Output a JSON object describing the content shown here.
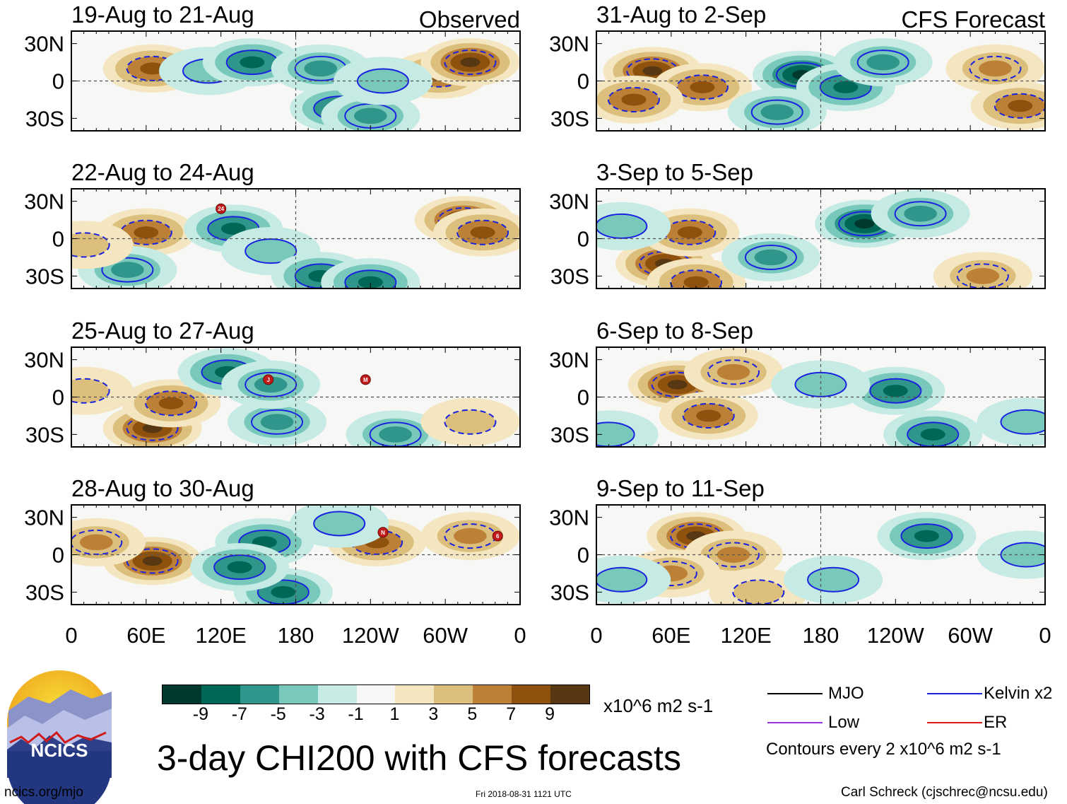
{
  "chart_data": {
    "type": "heatmap",
    "title": "3-day CHI200 with CFS forecasts",
    "units": "x10^6 m2 s-1",
    "contour_note": "Contours every 2 x10^6 m2 s-1",
    "x_ticks": [
      "0",
      "60E",
      "120E",
      "180",
      "120W",
      "60W",
      "0"
    ],
    "y_ticks": [
      "30N",
      "0",
      "30S"
    ],
    "ylim": [
      -40,
      40
    ],
    "xlim": [
      0,
      360
    ],
    "column_labels": [
      "Observed",
      "CFS Forecast"
    ],
    "panels": [
      {
        "label": "19-Aug to 21-Aug",
        "kind": "Observed",
        "blobs": [
          [
            65,
            10,
            7
          ],
          [
            110,
            8,
            -1
          ],
          [
            145,
            15,
            -7
          ],
          [
            200,
            10,
            -5
          ],
          [
            215,
            -22,
            -6
          ],
          [
            240,
            -28,
            -5
          ],
          [
            295,
            5,
            7
          ],
          [
            320,
            15,
            8
          ],
          [
            250,
            0,
            -3
          ]
        ],
        "storms": []
      },
      {
        "label": "22-Aug to 24-Aug",
        "kind": "Observed",
        "blobs": [
          [
            60,
            5,
            7
          ],
          [
            45,
            -25,
            -5
          ],
          [
            130,
            8,
            -6
          ],
          [
            160,
            -10,
            -3
          ],
          [
            200,
            -30,
            -7
          ],
          [
            240,
            -35,
            -6
          ],
          [
            315,
            15,
            9
          ],
          [
            330,
            5,
            7
          ],
          [
            10,
            -5,
            3
          ]
        ],
        "storms": [
          {
            "name": "24",
            "lon": 120,
            "lat": 24
          }
        ]
      },
      {
        "label": "25-Aug to 27-Aug",
        "kind": "Observed",
        "blobs": [
          [
            65,
            -25,
            8
          ],
          [
            80,
            -5,
            6
          ],
          [
            125,
            20,
            -6
          ],
          [
            165,
            -20,
            -5
          ],
          [
            160,
            10,
            -4
          ],
          [
            260,
            -30,
            -4
          ],
          [
            320,
            -20,
            3
          ],
          [
            10,
            5,
            2
          ]
        ],
        "storms": [
          {
            "name": "J",
            "lon": 158,
            "lat": 14
          },
          {
            "name": "M",
            "lon": 236,
            "lat": 14
          }
        ]
      },
      {
        "label": "28-Aug to 30-Aug",
        "kind": "Observed",
        "blobs": [
          [
            65,
            -5,
            9
          ],
          [
            20,
            10,
            4
          ],
          [
            155,
            10,
            -7
          ],
          [
            170,
            -30,
            -7
          ],
          [
            135,
            -10,
            -6
          ],
          [
            245,
            10,
            6
          ],
          [
            320,
            15,
            4
          ],
          [
            215,
            25,
            -3
          ]
        ],
        "storms": [
          {
            "name": "N",
            "lon": 250,
            "lat": 18
          },
          {
            "name": "6",
            "lon": 342,
            "lat": 15
          }
        ]
      },
      {
        "label": "31-Aug to 2-Sep",
        "kind": "CFS Forecast",
        "blobs": [
          [
            45,
            8,
            9
          ],
          [
            85,
            -5,
            7
          ],
          [
            30,
            -15,
            6
          ],
          [
            165,
            5,
            -8
          ],
          [
            200,
            -5,
            -6
          ],
          [
            230,
            15,
            -5
          ],
          [
            320,
            10,
            4
          ],
          [
            340,
            -20,
            6
          ],
          [
            145,
            -25,
            -4
          ]
        ],
        "storms": []
      },
      {
        "label": "3-Sep to 5-Sep",
        "kind": "CFS Forecast",
        "blobs": [
          [
            55,
            -20,
            9
          ],
          [
            75,
            5,
            7
          ],
          [
            80,
            -35,
            6
          ],
          [
            215,
            12,
            -9
          ],
          [
            140,
            -15,
            -4
          ],
          [
            260,
            20,
            -4
          ],
          [
            310,
            -30,
            5
          ],
          [
            20,
            10,
            -2
          ]
        ],
        "storms": []
      },
      {
        "label": "6-Sep to 8-Sep",
        "kind": "CFS Forecast",
        "blobs": [
          [
            65,
            10,
            9
          ],
          [
            90,
            -15,
            7
          ],
          [
            110,
            20,
            5
          ],
          [
            240,
            5,
            -6
          ],
          [
            270,
            -30,
            -6
          ],
          [
            180,
            10,
            -3
          ],
          [
            345,
            -20,
            -3
          ],
          [
            10,
            -30,
            -3
          ]
        ],
        "storms": []
      },
      {
        "label": "9-Sep to 11-Sep",
        "kind": "CFS Forecast",
        "blobs": [
          [
            80,
            15,
            9
          ],
          [
            110,
            0,
            5
          ],
          [
            60,
            -15,
            4
          ],
          [
            265,
            15,
            -6
          ],
          [
            130,
            -30,
            3
          ],
          [
            20,
            -20,
            -3
          ],
          [
            190,
            -20,
            -3
          ],
          [
            345,
            0,
            -3
          ]
        ],
        "storms": []
      }
    ],
    "colorbar": {
      "colors": [
        "#00382e",
        "#006757",
        "#30958a",
        "#78c9bb",
        "#c5ebe4",
        "#f7f7f5",
        "#f4e6c0",
        "#dcbf7c",
        "#bd8037",
        "#8e520e",
        "#573812"
      ],
      "labels": [
        "-9",
        "-7",
        "-5",
        "-3",
        "-1",
        "1",
        "3",
        "5",
        "7",
        "9"
      ]
    }
  },
  "legend": {
    "items": [
      {
        "label": "MJO",
        "color": "#000000"
      },
      {
        "label": "Kelvin x2",
        "color": "#1a22e0"
      },
      {
        "label": "Low",
        "color": "#9b30e0"
      },
      {
        "label": "ER",
        "color": "#e01a1a"
      }
    ]
  },
  "logo": {
    "text": "NCICS"
  },
  "footer": {
    "url": "ncics.org/mjo",
    "timestamp": "Fri 2018-08-31 1121 UTC",
    "author": "Carl Schreck (cjschrec@ncsu.edu)"
  }
}
